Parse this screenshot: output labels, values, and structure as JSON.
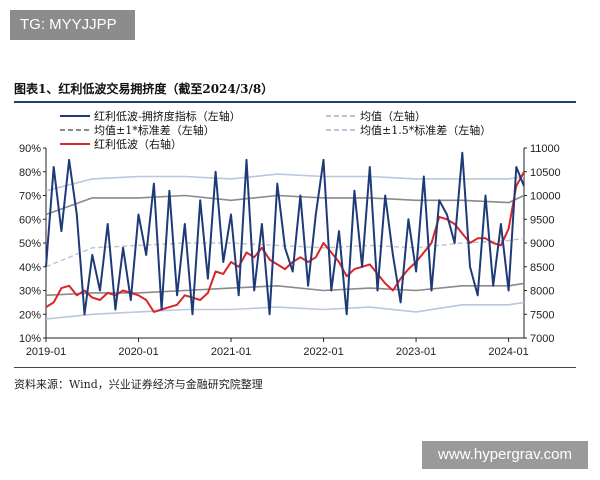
{
  "tag": {
    "text": "TG: MYYJJPP"
  },
  "figure_title": "图表1、红利低波交易拥挤度（截至2024/3/8）",
  "source_note": "资料来源：Wind，兴业证券经济与金融研究院整理",
  "watermark": "www.hypergrav.com",
  "colors": {
    "navy": "#1f3a78",
    "red": "#d8262a",
    "mean": "#bfc3cc",
    "band1": "#8a8a8a",
    "band15": "#b9c8dc"
  },
  "chart_data": {
    "type": "line",
    "x_axis": {
      "start": "2019-01",
      "end": "2024-03",
      "tick_labels": [
        "2019-01",
        "2020-01",
        "2021-01",
        "2022-01",
        "2023-01",
        "2024-01"
      ]
    },
    "y_left": {
      "range": [
        10,
        90
      ],
      "tick_labels": [
        "10%",
        "20%",
        "30%",
        "40%",
        "50%",
        "60%",
        "70%",
        "80%",
        "90%"
      ],
      "unit": "%"
    },
    "y_right": {
      "range": [
        7000,
        11000
      ],
      "tick_labels": [
        "7000",
        "7500",
        "8000",
        "8500",
        "9000",
        "9500",
        "10000",
        "10500",
        "11000"
      ]
    },
    "legend": [
      "红利低波-拥挤度指标（左轴）",
      "均值（左轴）",
      "均值±1*标准差（左轴）",
      "均值±1.5*标准差（左轴）",
      "红利低波（右轴）"
    ],
    "series": [
      {
        "name": "红利低波-拥挤度指标（左轴）",
        "axis": "left",
        "color": "#1f3a78",
        "x": [
          "2019-01",
          "2019-02",
          "2019-03",
          "2019-04",
          "2019-05",
          "2019-06",
          "2019-07",
          "2019-08",
          "2019-09",
          "2019-10",
          "2019-11",
          "2019-12",
          "2020-01",
          "2020-02",
          "2020-03",
          "2020-04",
          "2020-05",
          "2020-06",
          "2020-07",
          "2020-08",
          "2020-09",
          "2020-10",
          "2020-11",
          "2020-12",
          "2021-01",
          "2021-02",
          "2021-03",
          "2021-04",
          "2021-05",
          "2021-06",
          "2021-07",
          "2021-08",
          "2021-09",
          "2021-10",
          "2021-11",
          "2021-12",
          "2022-01",
          "2022-02",
          "2022-03",
          "2022-04",
          "2022-05",
          "2022-06",
          "2022-07",
          "2022-08",
          "2022-09",
          "2022-10",
          "2022-11",
          "2022-12",
          "2023-01",
          "2023-02",
          "2023-03",
          "2023-04",
          "2023-05",
          "2023-06",
          "2023-07",
          "2023-08",
          "2023-09",
          "2023-10",
          "2023-11",
          "2023-12",
          "2024-01",
          "2024-02",
          "2024-03"
        ],
        "values": [
          40,
          82,
          55,
          85,
          62,
          20,
          45,
          30,
          58,
          22,
          48,
          26,
          62,
          45,
          75,
          22,
          72,
          28,
          58,
          20,
          68,
          35,
          80,
          42,
          62,
          28,
          85,
          30,
          58,
          20,
          75,
          48,
          38,
          70,
          32,
          62,
          85,
          30,
          55,
          20,
          72,
          40,
          82,
          30,
          70,
          45,
          25,
          60,
          38,
          78,
          30,
          68,
          62,
          50,
          88,
          40,
          28,
          70,
          32,
          58,
          30,
          82,
          74
        ]
      },
      {
        "name": "红利低波（右轴）",
        "axis": "right",
        "color": "#d8262a",
        "x": [
          "2019-01",
          "2019-02",
          "2019-03",
          "2019-04",
          "2019-05",
          "2019-06",
          "2019-07",
          "2019-08",
          "2019-09",
          "2019-10",
          "2019-11",
          "2019-12",
          "2020-01",
          "2020-02",
          "2020-03",
          "2020-04",
          "2020-05",
          "2020-06",
          "2020-07",
          "2020-08",
          "2020-09",
          "2020-10",
          "2020-11",
          "2020-12",
          "2021-01",
          "2021-02",
          "2021-03",
          "2021-04",
          "2021-05",
          "2021-06",
          "2021-07",
          "2021-08",
          "2021-09",
          "2021-10",
          "2021-11",
          "2021-12",
          "2022-01",
          "2022-02",
          "2022-03",
          "2022-04",
          "2022-05",
          "2022-06",
          "2022-07",
          "2022-08",
          "2022-09",
          "2022-10",
          "2022-11",
          "2022-12",
          "2023-01",
          "2023-02",
          "2023-03",
          "2023-04",
          "2023-05",
          "2023-06",
          "2023-07",
          "2023-08",
          "2023-09",
          "2023-10",
          "2023-11",
          "2023-12",
          "2024-01",
          "2024-02",
          "2024-03"
        ],
        "values": [
          7650,
          7750,
          8050,
          8100,
          7900,
          8000,
          7850,
          7800,
          7950,
          7900,
          8000,
          7950,
          7900,
          7800,
          7550,
          7600,
          7650,
          7700,
          7900,
          7850,
          7800,
          7950,
          8400,
          8350,
          8600,
          8500,
          8800,
          8700,
          8900,
          8650,
          8550,
          8450,
          8600,
          8700,
          8600,
          8700,
          9000,
          8800,
          8600,
          8300,
          8450,
          8500,
          8550,
          8350,
          8150,
          8000,
          8250,
          8450,
          8600,
          8800,
          9000,
          9550,
          9500,
          9400,
          9200,
          9000,
          9100,
          9100,
          9000,
          8950,
          9300,
          10200,
          10500
        ]
      },
      {
        "name": "均值（左轴）",
        "axis": "left",
        "color": "#bfc3cc",
        "x": [
          "2019-01",
          "2019-07",
          "2020-01",
          "2020-07",
          "2021-01",
          "2021-07",
          "2022-01",
          "2022-07",
          "2023-01",
          "2023-07",
          "2024-01",
          "2024-03"
        ],
        "values": [
          40,
          48,
          49,
          50,
          50,
          49,
          48,
          49,
          48,
          50,
          51,
          52
        ]
      },
      {
        "name": "均值+1*标准差",
        "axis": "left",
        "color": "#8a8a8a",
        "x": [
          "2019-01",
          "2019-07",
          "2020-01",
          "2020-07",
          "2021-01",
          "2021-07",
          "2022-01",
          "2022-07",
          "2023-01",
          "2023-07",
          "2024-01",
          "2024-03"
        ],
        "values": [
          62,
          69,
          69,
          70,
          68,
          70,
          69,
          69,
          68,
          68,
          67,
          70
        ]
      },
      {
        "name": "均值-1*标准差",
        "axis": "left",
        "color": "#8a8a8a",
        "x": [
          "2019-01",
          "2019-07",
          "2020-01",
          "2020-07",
          "2021-01",
          "2021-07",
          "2022-01",
          "2022-07",
          "2023-01",
          "2023-07",
          "2024-01",
          "2024-03"
        ],
        "values": [
          28,
          29,
          29,
          30,
          31,
          32,
          30,
          31,
          30,
          32,
          32,
          33
        ]
      },
      {
        "name": "均值+1.5*标准差",
        "axis": "left",
        "color": "#b9c8dc",
        "x": [
          "2019-01",
          "2019-07",
          "2020-01",
          "2020-07",
          "2021-01",
          "2021-07",
          "2022-01",
          "2022-07",
          "2023-01",
          "2023-07",
          "2024-01",
          "2024-03"
        ],
        "values": [
          72,
          77,
          78,
          78,
          77,
          79,
          78,
          78,
          77,
          77,
          77,
          78
        ]
      },
      {
        "name": "均值-1.5*标准差",
        "axis": "left",
        "color": "#b9c8dc",
        "x": [
          "2019-01",
          "2019-07",
          "2020-01",
          "2020-07",
          "2021-01",
          "2021-07",
          "2022-01",
          "2022-07",
          "2023-01",
          "2023-07",
          "2024-01",
          "2024-03"
        ],
        "values": [
          18,
          20,
          21,
          22,
          22,
          23,
          22,
          23,
          21,
          24,
          24,
          25
        ]
      }
    ]
  }
}
